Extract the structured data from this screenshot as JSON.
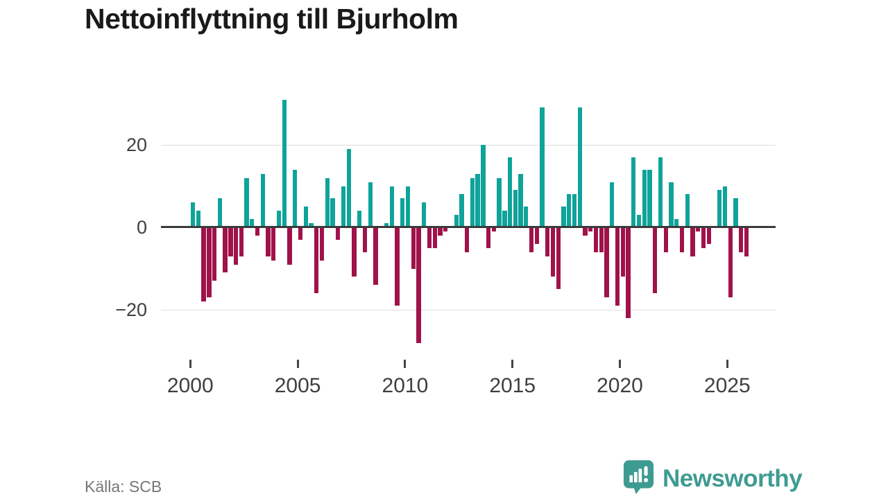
{
  "title": "Nettoinflyttning till Bjurholm",
  "source_label": "Källa: SCB",
  "branding": {
    "wordmark": "Newsworthy",
    "icon": "newsworthy-speech-bubble-barchart-icon",
    "color": "#3e9b91"
  },
  "colors": {
    "positive": "#0fa39a",
    "negative": "#a0124a",
    "zero_axis": "#3b3b3b",
    "gridline": "#dedede",
    "tick_label": "#3f3f3f"
  },
  "chart_data": {
    "type": "bar",
    "title": "Nettoinflyttning till Bjurholm",
    "series_name": "Nettoinflyttning",
    "frequency": "quarterly",
    "start_period": "2000 Q1",
    "end_period": "2025 Q4",
    "x_tick_labels": [
      "2000",
      "2005",
      "2010",
      "2015",
      "2020",
      "2025"
    ],
    "x_tick_years": [
      2000,
      2005,
      2010,
      2015,
      2020,
      2025
    ],
    "y_ticks": [
      20,
      0,
      -20
    ],
    "y_tick_labels": [
      "20",
      "0",
      "−20"
    ],
    "gridline_values": [
      20,
      -20
    ],
    "ylim": [
      -30,
      33
    ],
    "grid": "horizontal",
    "legend": "none",
    "values": [
      6,
      4,
      -18,
      -17,
      -13,
      7,
      -11,
      -7,
      -9,
      -7,
      12,
      2,
      -2,
      13,
      -7,
      -8,
      4,
      31,
      -9,
      14,
      -3,
      5,
      1,
      -16,
      -8,
      12,
      7,
      -3,
      10,
      19,
      -12,
      4,
      -6,
      11,
      -14,
      0,
      1,
      10,
      -19,
      7,
      10,
      -10,
      -28,
      6,
      -5,
      -5,
      -2,
      -1,
      0,
      3,
      8,
      -6,
      12,
      13,
      20,
      -5,
      -1,
      12,
      4,
      17,
      9,
      13,
      5,
      -6,
      -4,
      29,
      -7,
      -12,
      -15,
      5,
      8,
      8,
      29,
      -2,
      -1,
      -6,
      -6,
      -17,
      11,
      -19,
      -12,
      -22,
      17,
      3,
      14,
      14,
      -16,
      17,
      -6,
      11,
      2,
      -6,
      8,
      -7,
      -1,
      -5,
      -4,
      0,
      9,
      10,
      -17,
      7,
      -6,
      -7
    ]
  }
}
